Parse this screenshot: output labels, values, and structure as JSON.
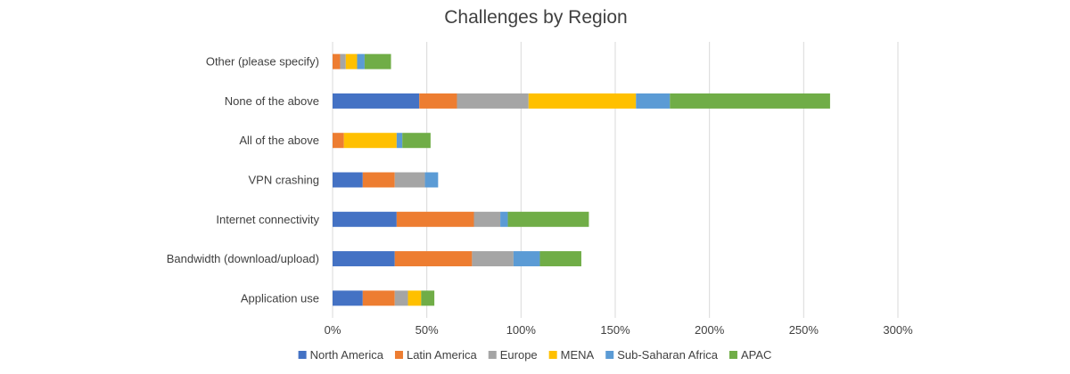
{
  "chart_data": {
    "type": "bar",
    "orientation": "horizontal",
    "stacked": true,
    "title": "Challenges by Region",
    "xlabel": "",
    "ylabel": "",
    "xlim": [
      0,
      3.0
    ],
    "x_ticks": [
      "0%",
      "50%",
      "100%",
      "150%",
      "200%",
      "250%",
      "300%"
    ],
    "grid": "vertical",
    "legend_position": "bottom",
    "categories": [
      "Other (please specify)",
      "None of the above",
      "All of the above",
      "VPN crashing",
      "Internet connectivity",
      "Bandwidth (download/upload)",
      "Application use"
    ],
    "series": [
      {
        "name": "North America",
        "color": "#4472C4",
        "values": [
          0.0,
          0.46,
          0.0,
          0.16,
          0.34,
          0.33,
          0.16
        ]
      },
      {
        "name": "Latin America",
        "color": "#ED7D31",
        "values": [
          0.04,
          0.2,
          0.06,
          0.17,
          0.41,
          0.41,
          0.17
        ]
      },
      {
        "name": "Europe",
        "color": "#A5A5A5",
        "values": [
          0.03,
          0.38,
          0.0,
          0.16,
          0.14,
          0.22,
          0.07
        ]
      },
      {
        "name": "MENA",
        "color": "#FFC000",
        "values": [
          0.06,
          0.57,
          0.28,
          0.0,
          0.0,
          0.0,
          0.07
        ]
      },
      {
        "name": "Sub-Saharan Africa",
        "color": "#5B9BD5",
        "values": [
          0.04,
          0.18,
          0.03,
          0.07,
          0.04,
          0.14,
          0.0
        ]
      },
      {
        "name": "APAC",
        "color": "#70AD47",
        "values": [
          0.14,
          0.85,
          0.15,
          0.0,
          0.43,
          0.22,
          0.07
        ]
      }
    ]
  }
}
